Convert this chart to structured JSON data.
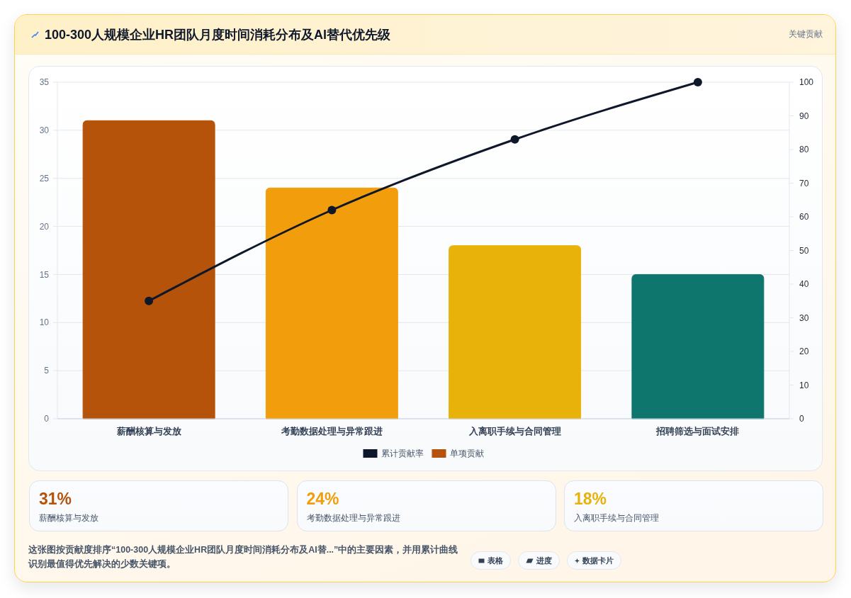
{
  "chart_data": [
    {
      "type": "bar",
      "title": "100-300人规模企业HR团队月度时间消耗分布及AI替代优先级",
      "annotations": [
        "关键贡献"
      ],
      "categories": [
        "薪酬核算与发放",
        "考勤数据处理与异常跟进",
        "入离职手续与合同管理",
        "招聘筛选与面试安排"
      ],
      "series": [
        {
          "name": "累计贡献率",
          "type": "line",
          "axis": "y2",
          "color": "#0f172a",
          "values": [
            35,
            62,
            83,
            100
          ]
        },
        {
          "name": "单项贡献",
          "type": "bar",
          "color": "#b45309",
          "colors": [
            "#b45309",
            "#f29e0c",
            "#e8b20a",
            "#0f766e"
          ],
          "values": [
            31,
            24,
            18,
            15
          ]
        }
      ],
      "ylim": [
        0,
        35
      ],
      "yticks": [
        0,
        5,
        10,
        15,
        20,
        25,
        30,
        35
      ],
      "y2lim": [
        0,
        100
      ],
      "y2ticks": [
        0,
        10,
        20,
        30,
        40,
        50,
        60,
        70,
        80,
        90,
        100
      ],
      "grid": "y",
      "legend": "bottom",
      "marker": "circle",
      "line_style": "solid"
    },
    {
      "type": "other",
      "colors": [
        "#b45309",
        "#f29e0c",
        "#e8b20a"
      ],
      "annotations": [
        "31%",
        "薪酬核算与发放",
        "24%",
        "考勤数据处理与异常跟进",
        "18%",
        "入离职手续与合同管理",
        "这张图按贡献度排序“100-300人规模企业HR团队月度时间消耗分布及AI替...”中的主要因素，并用累计曲线识别最值得优先解决的少数关键项。",
        "表格",
        "进度",
        "数据卡片"
      ]
    }
  ]
}
